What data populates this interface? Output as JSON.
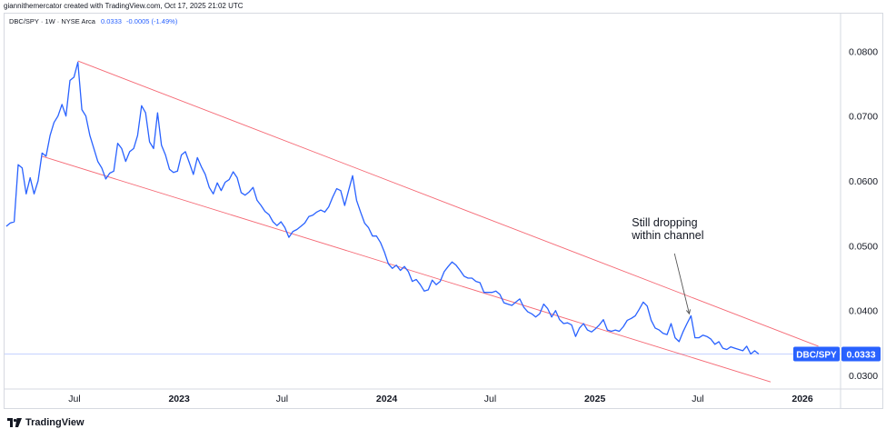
{
  "header": {
    "attribution": "giannithemercator created with TradingView.com, Oct 17, 2025 21:02 UTC"
  },
  "legend": {
    "symbol": "DBC/SPY · 1W · NYSE Arca",
    "last_value": "0.0333",
    "change": "-0.0005 (-1.49%)"
  },
  "footer": {
    "brand": "TradingView"
  },
  "colors": {
    "line": "#2962ff",
    "channel": "#f23645",
    "price_tag": "#2962ff",
    "axis_text": "#131722"
  },
  "chart_data": {
    "type": "line",
    "symbol_label": "DBC/SPY",
    "price_label": "0.0333",
    "x_range": [
      "2022-02-28",
      "2026-03-09"
    ],
    "y_range": [
      0.0279,
      0.0858
    ],
    "x_ticks": [
      {
        "date": "2022-07-01",
        "label": "Jul",
        "bold": false
      },
      {
        "date": "2023-01-01",
        "label": "2023",
        "bold": true
      },
      {
        "date": "2023-07-01",
        "label": "Jul",
        "bold": false
      },
      {
        "date": "2024-01-01",
        "label": "2024",
        "bold": true
      },
      {
        "date": "2024-07-01",
        "label": "Jul",
        "bold": false
      },
      {
        "date": "2025-01-01",
        "label": "2025",
        "bold": true
      },
      {
        "date": "2025-07-01",
        "label": "Jul",
        "bold": false
      },
      {
        "date": "2026-01-01",
        "label": "2026",
        "bold": true
      }
    ],
    "y_ticks": [
      {
        "value": 0.08,
        "label": "0.0800"
      },
      {
        "value": 0.07,
        "label": "0.0700"
      },
      {
        "value": 0.06,
        "label": "0.0600"
      },
      {
        "value": 0.05,
        "label": "0.0500"
      },
      {
        "value": 0.04,
        "label": "0.0400"
      },
      {
        "value": 0.03,
        "label": "0.0300"
      }
    ],
    "series": [
      {
        "points": [
          [
            "2022-03-03",
            0.053
          ],
          [
            "2022-03-10",
            0.0535
          ],
          [
            "2022-03-17",
            0.0537
          ],
          [
            "2022-03-24",
            0.0625
          ],
          [
            "2022-03-31",
            0.062
          ],
          [
            "2022-04-07",
            0.058
          ],
          [
            "2022-04-14",
            0.0605
          ],
          [
            "2022-04-21",
            0.058
          ],
          [
            "2022-04-28",
            0.06
          ],
          [
            "2022-05-05",
            0.0643
          ],
          [
            "2022-05-12",
            0.0638
          ],
          [
            "2022-05-19",
            0.067
          ],
          [
            "2022-05-26",
            0.069
          ],
          [
            "2022-06-02",
            0.07
          ],
          [
            "2022-06-09",
            0.0718
          ],
          [
            "2022-06-16",
            0.07
          ],
          [
            "2022-06-23",
            0.0755
          ],
          [
            "2022-06-30",
            0.076
          ],
          [
            "2022-07-07",
            0.0783
          ],
          [
            "2022-07-14",
            0.071
          ],
          [
            "2022-07-21",
            0.07
          ],
          [
            "2022-07-28",
            0.067
          ],
          [
            "2022-08-04",
            0.065
          ],
          [
            "2022-08-11",
            0.063
          ],
          [
            "2022-08-18",
            0.062
          ],
          [
            "2022-08-25",
            0.0603
          ],
          [
            "2022-09-01",
            0.0612
          ],
          [
            "2022-09-08",
            0.0615
          ],
          [
            "2022-09-15",
            0.0658
          ],
          [
            "2022-09-22",
            0.065
          ],
          [
            "2022-09-29",
            0.063
          ],
          [
            "2022-10-06",
            0.0645
          ],
          [
            "2022-10-13",
            0.065
          ],
          [
            "2022-10-20",
            0.067
          ],
          [
            "2022-10-27",
            0.0716
          ],
          [
            "2022-11-03",
            0.0705
          ],
          [
            "2022-11-10",
            0.066
          ],
          [
            "2022-11-17",
            0.065
          ],
          [
            "2022-11-24",
            0.0705
          ],
          [
            "2022-12-01",
            0.0655
          ],
          [
            "2022-12-08",
            0.064
          ],
          [
            "2022-12-15",
            0.0618
          ],
          [
            "2022-12-22",
            0.0613
          ],
          [
            "2022-12-29",
            0.0615
          ],
          [
            "2023-01-05",
            0.064
          ],
          [
            "2023-01-12",
            0.0645
          ],
          [
            "2023-01-19",
            0.0628
          ],
          [
            "2023-01-26",
            0.061
          ],
          [
            "2023-02-02",
            0.0636
          ],
          [
            "2023-02-09",
            0.0622
          ],
          [
            "2023-02-16",
            0.061
          ],
          [
            "2023-02-23",
            0.059
          ],
          [
            "2023-03-02",
            0.058
          ],
          [
            "2023-03-09",
            0.0597
          ],
          [
            "2023-03-16",
            0.0585
          ],
          [
            "2023-03-23",
            0.0598
          ],
          [
            "2023-03-30",
            0.0602
          ],
          [
            "2023-04-06",
            0.0614
          ],
          [
            "2023-04-13",
            0.0605
          ],
          [
            "2023-04-20",
            0.0582
          ],
          [
            "2023-04-27",
            0.0578
          ],
          [
            "2023-05-04",
            0.0583
          ],
          [
            "2023-05-11",
            0.059
          ],
          [
            "2023-05-18",
            0.057
          ],
          [
            "2023-05-25",
            0.0562
          ],
          [
            "2023-06-01",
            0.0553
          ],
          [
            "2023-06-08",
            0.0548
          ],
          [
            "2023-06-15",
            0.0537
          ],
          [
            "2023-06-22",
            0.0531
          ],
          [
            "2023-06-29",
            0.0537
          ],
          [
            "2023-07-06",
            0.0528
          ],
          [
            "2023-07-13",
            0.0513
          ],
          [
            "2023-07-20",
            0.0522
          ],
          [
            "2023-07-27",
            0.0525
          ],
          [
            "2023-08-03",
            0.053
          ],
          [
            "2023-08-10",
            0.0535
          ],
          [
            "2023-08-17",
            0.0545
          ],
          [
            "2023-08-24",
            0.0547
          ],
          [
            "2023-08-31",
            0.0552
          ],
          [
            "2023-09-07",
            0.0555
          ],
          [
            "2023-09-14",
            0.0552
          ],
          [
            "2023-09-21",
            0.056
          ],
          [
            "2023-09-28",
            0.0575
          ],
          [
            "2023-10-05",
            0.0588
          ],
          [
            "2023-10-12",
            0.0585
          ],
          [
            "2023-10-19",
            0.0562
          ],
          [
            "2023-10-26",
            0.0585
          ],
          [
            "2023-11-02",
            0.0608
          ],
          [
            "2023-11-09",
            0.057
          ],
          [
            "2023-11-16",
            0.0552
          ],
          [
            "2023-11-23",
            0.0535
          ],
          [
            "2023-11-30",
            0.0528
          ],
          [
            "2023-12-07",
            0.0515
          ],
          [
            "2023-12-14",
            0.0515
          ],
          [
            "2023-12-21",
            0.0505
          ],
          [
            "2023-12-28",
            0.049
          ],
          [
            "2024-01-04",
            0.0472
          ],
          [
            "2024-01-11",
            0.0465
          ],
          [
            "2024-01-18",
            0.047
          ],
          [
            "2024-01-25",
            0.0462
          ],
          [
            "2024-02-01",
            0.0468
          ],
          [
            "2024-02-08",
            0.046
          ],
          [
            "2024-02-15",
            0.0445
          ],
          [
            "2024-02-22",
            0.0448
          ],
          [
            "2024-02-29",
            0.044
          ],
          [
            "2024-03-07",
            0.043
          ],
          [
            "2024-03-14",
            0.0432
          ],
          [
            "2024-03-21",
            0.0447
          ],
          [
            "2024-03-28",
            0.044
          ],
          [
            "2024-04-04",
            0.0445
          ],
          [
            "2024-04-11",
            0.046
          ],
          [
            "2024-04-18",
            0.0468
          ],
          [
            "2024-04-25",
            0.0475
          ],
          [
            "2024-05-02",
            0.047
          ],
          [
            "2024-05-09",
            0.0462
          ],
          [
            "2024-05-16",
            0.0453
          ],
          [
            "2024-05-23",
            0.045
          ],
          [
            "2024-05-30",
            0.045
          ],
          [
            "2024-06-06",
            0.0445
          ],
          [
            "2024-06-13",
            0.0443
          ],
          [
            "2024-06-20",
            0.0428
          ],
          [
            "2024-06-27",
            0.0428
          ],
          [
            "2024-07-04",
            0.0428
          ],
          [
            "2024-07-11",
            0.043
          ],
          [
            "2024-07-18",
            0.0425
          ],
          [
            "2024-07-25",
            0.0412
          ],
          [
            "2024-08-01",
            0.041
          ],
          [
            "2024-08-08",
            0.0408
          ],
          [
            "2024-08-15",
            0.0413
          ],
          [
            "2024-08-22",
            0.0418
          ],
          [
            "2024-08-29",
            0.0405
          ],
          [
            "2024-09-05",
            0.0398
          ],
          [
            "2024-09-12",
            0.0395
          ],
          [
            "2024-09-19",
            0.039
          ],
          [
            "2024-09-26",
            0.0395
          ],
          [
            "2024-10-03",
            0.041
          ],
          [
            "2024-10-10",
            0.0403
          ],
          [
            "2024-10-17",
            0.039
          ],
          [
            "2024-10-24",
            0.04
          ],
          [
            "2024-10-31",
            0.0386
          ],
          [
            "2024-11-07",
            0.038
          ],
          [
            "2024-11-14",
            0.0381
          ],
          [
            "2024-11-21",
            0.0378
          ],
          [
            "2024-11-28",
            0.036
          ],
          [
            "2024-12-05",
            0.0373
          ],
          [
            "2024-12-12",
            0.038
          ],
          [
            "2024-12-19",
            0.037
          ],
          [
            "2024-12-26",
            0.0367
          ],
          [
            "2025-01-02",
            0.0372
          ],
          [
            "2025-01-09",
            0.0378
          ],
          [
            "2025-01-16",
            0.0386
          ],
          [
            "2025-01-23",
            0.037
          ],
          [
            "2025-01-30",
            0.0368
          ],
          [
            "2025-02-06",
            0.037
          ],
          [
            "2025-02-13",
            0.0368
          ],
          [
            "2025-02-20",
            0.0375
          ],
          [
            "2025-02-27",
            0.0385
          ],
          [
            "2025-03-06",
            0.0388
          ],
          [
            "2025-03-13",
            0.0392
          ],
          [
            "2025-03-20",
            0.0402
          ],
          [
            "2025-03-27",
            0.0413
          ],
          [
            "2025-04-03",
            0.0407
          ],
          [
            "2025-04-10",
            0.0385
          ],
          [
            "2025-04-17",
            0.0373
          ],
          [
            "2025-04-24",
            0.037
          ],
          [
            "2025-05-01",
            0.0365
          ],
          [
            "2025-05-08",
            0.0363
          ],
          [
            "2025-05-15",
            0.038
          ],
          [
            "2025-05-22",
            0.0358
          ],
          [
            "2025-05-29",
            0.0352
          ],
          [
            "2025-06-05",
            0.0367
          ],
          [
            "2025-06-12",
            0.038
          ],
          [
            "2025-06-19",
            0.0392
          ],
          [
            "2025-06-26",
            0.0358
          ],
          [
            "2025-07-03",
            0.0358
          ],
          [
            "2025-07-10",
            0.0362
          ],
          [
            "2025-07-17",
            0.036
          ],
          [
            "2025-07-24",
            0.0356
          ],
          [
            "2025-07-31",
            0.0348
          ],
          [
            "2025-08-07",
            0.0352
          ],
          [
            "2025-08-14",
            0.0342
          ],
          [
            "2025-08-21",
            0.034
          ],
          [
            "2025-08-28",
            0.0344
          ],
          [
            "2025-09-04",
            0.0342
          ],
          [
            "2025-09-11",
            0.034
          ],
          [
            "2025-09-18",
            0.0338
          ],
          [
            "2025-09-25",
            0.0345
          ],
          [
            "2025-10-02",
            0.0333
          ],
          [
            "2025-10-09",
            0.0338
          ],
          [
            "2025-10-16",
            0.0333
          ]
        ]
      }
    ],
    "channel_lines": [
      {
        "start": [
          "2022-07-07",
          0.0785
        ],
        "end": [
          "2026-01-29",
          0.0345
        ]
      },
      {
        "start": [
          "2022-05-05",
          0.0638
        ],
        "end": [
          "2025-11-06",
          0.029
        ]
      }
    ],
    "annotation": {
      "text_lines": [
        "Still dropping",
        "within channel"
      ],
      "arrow_from": [
        "2025-05-21",
        0.0488
      ],
      "arrow_to": [
        "2025-06-16",
        0.0395
      ]
    }
  }
}
